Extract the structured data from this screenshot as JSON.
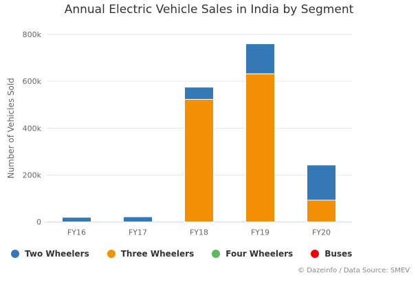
{
  "chart_data": {
    "type": "bar",
    "stacked": true,
    "title": "Annual Electric Vehicle Sales in India by Segment",
    "xlabel": "",
    "ylabel": "Number of Vehicles Sold",
    "ylim": [
      0,
      800000
    ],
    "yticks": [
      0,
      200000,
      400000,
      600000,
      800000
    ],
    "ytick_labels": [
      "0",
      "200k",
      "400k",
      "600k",
      "800k"
    ],
    "grid": true,
    "legend_position": "bottom",
    "categories": [
      "FY16",
      "FY17",
      "FY18",
      "FY19",
      "FY20"
    ],
    "series": [
      {
        "name": "Two Wheelers",
        "color": "#3479b5",
        "values": [
          20000,
          22000,
          52000,
          128000,
          150000
        ]
      },
      {
        "name": "Three Wheelers",
        "color": "#f39006",
        "values": [
          0,
          0,
          523000,
          632000,
          93000
        ]
      },
      {
        "name": "Four Wheelers",
        "color": "#5cb85c",
        "values": [
          0,
          0,
          0,
          0,
          0
        ]
      },
      {
        "name": "Buses",
        "color": "#ee0000",
        "values": [
          0,
          0,
          0,
          0,
          0
        ]
      }
    ]
  },
  "credit": "© Dazeinfo / Data Source: SMEV"
}
